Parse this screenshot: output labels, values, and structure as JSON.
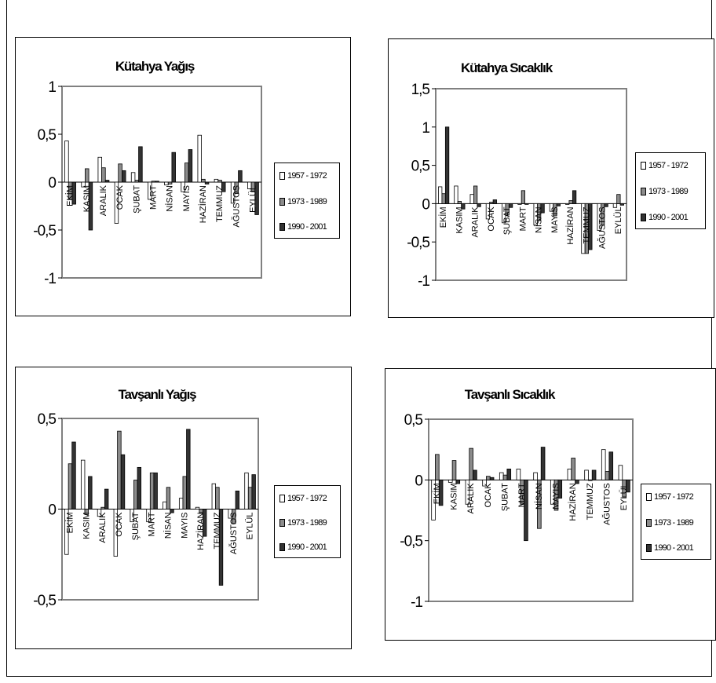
{
  "colors": {
    "series": [
      "#ffffff",
      "#8c8c8c",
      "#333333"
    ],
    "stroke": "#000000"
  },
  "chart_data": [
    {
      "type": "bar",
      "title": "Kütahya Yağış",
      "categories": [
        "EKİM",
        "KASIM",
        "ARALIK",
        "OCAK",
        "ŞUBAT",
        "MART",
        "NİSAN",
        "MAYIS",
        "HAZİRAN",
        "TEMMUZ",
        "AĞUSTOS",
        "EYLÜL"
      ],
      "yticks": [
        "1",
        "0,5",
        "0",
        "-0,5",
        "-1"
      ],
      "ylim": [
        -1,
        1
      ],
      "legend_position": "right",
      "grid": false,
      "series": [
        {
          "name": "1957 - 1972",
          "values": [
            0.43,
            -0.05,
            0.26,
            -0.43,
            0.1,
            -0.18,
            -0.03,
            -0.1,
            0.49,
            0.03,
            -0.22,
            -0.07
          ]
        },
        {
          "name": "1973 - 1989",
          "values": [
            -0.18,
            0.14,
            0.15,
            0.19,
            0.02,
            0.01,
            -0.02,
            0.2,
            0.03,
            0.02,
            -0.12,
            -0.1
          ]
        },
        {
          "name": "1990 - 2001",
          "values": [
            -0.23,
            -0.5,
            0.02,
            0.12,
            0.37,
            0.01,
            0.31,
            0.34,
            -0.02,
            -0.1,
            0.12,
            -0.34
          ]
        }
      ]
    },
    {
      "type": "bar",
      "title": "Kütahya Sıcaklık",
      "categories": [
        "EKİM",
        "KASIM",
        "ARALIK",
        "OCAK",
        "ŞUBAT",
        "MART",
        "NİSAN",
        "MAYIS",
        "HAZİRAN",
        "TEMMUZ",
        "AĞUSTOS",
        "EYLÜL"
      ],
      "yticks": [
        "1,5",
        "1",
        "0,5",
        "0",
        "-0,5",
        "-1"
      ],
      "ylim": [
        -1,
        1.5
      ],
      "legend_position": "right",
      "grid": false,
      "series": [
        {
          "name": "1957 - 1972",
          "values": [
            0.22,
            0.23,
            0.12,
            -0.2,
            -0.25,
            -0.01,
            -0.28,
            -0.1,
            -0.01,
            -0.65,
            -0.35,
            -0.05
          ]
        },
        {
          "name": "1973 - 1989",
          "values": [
            0.13,
            0.03,
            0.23,
            0.02,
            -0.15,
            0.17,
            -0.22,
            -0.16,
            0.04,
            -0.65,
            -0.28,
            0.12
          ]
        },
        {
          "name": "1990 - 2001",
          "values": [
            1.0,
            -0.07,
            -0.04,
            0.05,
            -0.05,
            -0.01,
            -0.12,
            -0.03,
            0.17,
            -0.6,
            -0.04,
            -0.02
          ]
        }
      ]
    },
    {
      "type": "bar",
      "title": "Tavşanlı Yağış",
      "categories": [
        "EKİM",
        "KASIM",
        "ARALIK",
        "OCAK",
        "ŞUBAT",
        "MART",
        "NİSAN",
        "MAYIS",
        "HAZİRAN",
        "TEMMUZ",
        "AĞUSTOS",
        "EYLÜL"
      ],
      "yticks": [
        "0,5",
        "0",
        "-0,5"
      ],
      "ylim": [
        -0.5,
        0.5
      ],
      "legend_position": "right",
      "grid": false,
      "series": [
        {
          "name": "1957 - 1972",
          "values": [
            -0.25,
            0.27,
            -0.04,
            -0.26,
            -0.07,
            -0.07,
            0.04,
            0.06,
            0.01,
            0.14,
            -0.05,
            0.2
          ]
        },
        {
          "name": "1973 - 1989",
          "values": [
            0.25,
            -0.03,
            0.01,
            0.43,
            0.16,
            0.2,
            0.12,
            0.18,
            -0.02,
            0.12,
            -0.08,
            0.12
          ]
        },
        {
          "name": "1990 - 2001",
          "values": [
            0.37,
            0.18,
            0.11,
            0.3,
            0.23,
            0.2,
            -0.02,
            0.44,
            -0.15,
            -0.42,
            0.1,
            0.19
          ]
        }
      ]
    },
    {
      "type": "bar",
      "title": "Tavşanlı Sıcaklık",
      "categories": [
        "EKİM",
        "KASIM",
        "ARALIK",
        "OCAK",
        "ŞUBAT",
        "MART",
        "NİSAN",
        "MAYIS",
        "HAZİRAN",
        "TEMMUZ",
        "AĞUSTOS",
        "EYLÜL"
      ],
      "yticks": [
        "0,5",
        "0",
        "-0,5",
        "-1"
      ],
      "ylim": [
        -1,
        0.5
      ],
      "legend_position": "right",
      "grid": false,
      "series": [
        {
          "name": "1957 - 1972",
          "values": [
            -0.33,
            -0.02,
            -0.2,
            -0.05,
            0.06,
            0.09,
            0.06,
            -0.2,
            0.09,
            0.08,
            0.25,
            0.12
          ]
        },
        {
          "name": "1973 - 1989",
          "values": [
            0.21,
            0.16,
            0.26,
            0.03,
            0.04,
            -0.2,
            -0.4,
            -0.25,
            0.18,
            0.0,
            0.07,
            -0.14
          ]
        },
        {
          "name": "1990 - 2001",
          "values": [
            -0.21,
            -0.03,
            0.08,
            0.02,
            0.09,
            -0.5,
            0.27,
            -0.15,
            -0.03,
            0.08,
            0.23,
            -0.1
          ]
        }
      ]
    }
  ]
}
